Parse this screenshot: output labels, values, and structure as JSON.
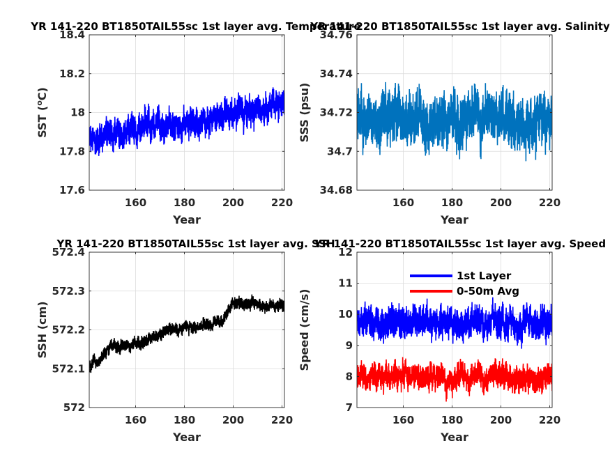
{
  "chart_data": [
    {
      "type": "line",
      "title": "YR 141-220 BT1850TAIL55sc 1st layer avg. Temperature",
      "xlabel": "Year",
      "ylabel": "SST (",
      "ylabel_sup": "o",
      "ylabel_end": "C)",
      "xlim": [
        141,
        221
      ],
      "ylim": [
        17.6,
        18.4
      ],
      "xticks": [
        160,
        180,
        200,
        220
      ],
      "yticks": [
        17.6,
        17.8,
        18,
        18.2,
        18.4
      ],
      "grid": true,
      "series": [
        {
          "color": "#0000ff",
          "trend": [
            [
              141,
              17.86
            ],
            [
              160,
              17.92
            ],
            [
              180,
              17.95
            ],
            [
              200,
              18.0
            ],
            [
              221,
              18.05
            ]
          ],
          "amplitude": 0.12
        }
      ]
    },
    {
      "type": "line",
      "title": "YR 141-220 BT1850TAIL55sc 1st layer avg. Salinity",
      "xlabel": "Year",
      "ylabel": "SSS (psu)",
      "xlim": [
        141,
        221
      ],
      "ylim": [
        34.68,
        34.76
      ],
      "xticks": [
        160,
        180,
        200,
        220
      ],
      "yticks": [
        34.68,
        34.7,
        34.72,
        34.74,
        34.76
      ],
      "grid": true,
      "series": [
        {
          "color": "#0072bd",
          "trend": [
            [
              141,
              34.716
            ],
            [
              180,
              34.716
            ],
            [
              221,
              34.716
            ]
          ],
          "amplitude": 0.021
        }
      ]
    },
    {
      "type": "line",
      "title": "YR 141-220 BT1850TAIL55sc 1st layer avg. SSH",
      "xlabel": "Year",
      "ylabel": "SSH (cm)",
      "xlim": [
        141,
        221
      ],
      "ylim": [
        572,
        572.4
      ],
      "xticks": [
        160,
        180,
        200,
        220
      ],
      "yticks": [
        572,
        572.1,
        572.2,
        572.3,
        572.4
      ],
      "grid": true,
      "series": [
        {
          "color": "#000000",
          "trend": [
            [
              141,
              572.1
            ],
            [
              150,
              572.16
            ],
            [
              160,
              572.16
            ],
            [
              170,
              572.19
            ],
            [
              180,
              572.21
            ],
            [
              190,
              572.21
            ],
            [
              196,
              572.22
            ],
            [
              200,
              572.27
            ],
            [
              221,
              572.26
            ]
          ],
          "amplitude": 0.025
        }
      ]
    },
    {
      "type": "line",
      "title": "YR 141-220 BT1850TAIL55sc 1st layer avg. Speed",
      "xlabel": "Year",
      "ylabel": "Speed (cm/s)",
      "xlim": [
        141,
        221
      ],
      "ylim": [
        7,
        12
      ],
      "xticks": [
        160,
        180,
        200,
        220
      ],
      "yticks": [
        7,
        8,
        9,
        10,
        11,
        12
      ],
      "grid": true,
      "legend": "top",
      "series": [
        {
          "name": "1st Layer",
          "color": "#0000ff",
          "trend": [
            [
              141,
              9.7
            ],
            [
              221,
              9.7
            ]
          ],
          "amplitude": 0.8
        },
        {
          "name": "0-50m Avg",
          "color": "#ff0000",
          "trend": [
            [
              141,
              8.0
            ],
            [
              221,
              8.0
            ]
          ],
          "amplitude": 0.65
        }
      ]
    }
  ]
}
